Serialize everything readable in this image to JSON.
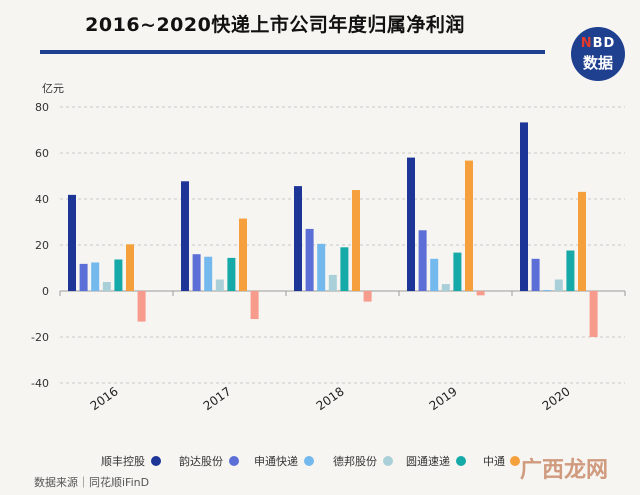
{
  "title": "2016~2020快递上市公司年度归属净利润",
  "logo": {
    "top_n": "N",
    "top_rest": "BD",
    "bottom": "数据"
  },
  "source": "数据来源｜同花顺iFinD",
  "watermark": "广西龙网",
  "chart_data": {
    "type": "bar",
    "ylabel": "亿元",
    "ylim": [
      -40,
      80
    ],
    "yticks": [
      -40,
      -20,
      0,
      20,
      40,
      60,
      80
    ],
    "categories": [
      "2016",
      "2017",
      "2018",
      "2019",
      "2020"
    ],
    "grid": true,
    "legend_position": "bottom",
    "series": [
      {
        "name": "顺丰控股",
        "color": "#1c3596",
        "values": [
          41.8,
          47.7,
          45.6,
          58.0,
          73.3
        ]
      },
      {
        "name": "韵达股份",
        "color": "#5b6fd6",
        "values": [
          11.8,
          16.0,
          27.0,
          26.4,
          14.0
        ]
      },
      {
        "name": "申通快递",
        "color": "#74b9ee",
        "values": [
          12.4,
          14.9,
          20.5,
          14.0,
          0.4
        ]
      },
      {
        "name": "德邦股份",
        "color": "#a9cfd8",
        "values": [
          3.9,
          5.0,
          7.0,
          3.0,
          5.0
        ]
      },
      {
        "name": "圆通速递",
        "color": "#15aaa8",
        "values": [
          13.7,
          14.4,
          19.0,
          16.7,
          17.6
        ]
      },
      {
        "name": "中通",
        "color": "#f5a03c",
        "values": [
          20.3,
          31.5,
          43.9,
          56.7,
          43.1
        ]
      },
      {
        "name": "",
        "color": "#f79b8d",
        "values": [
          -13.3,
          -12.2,
          -4.6,
          -1.9,
          -20.0
        ]
      }
    ]
  }
}
